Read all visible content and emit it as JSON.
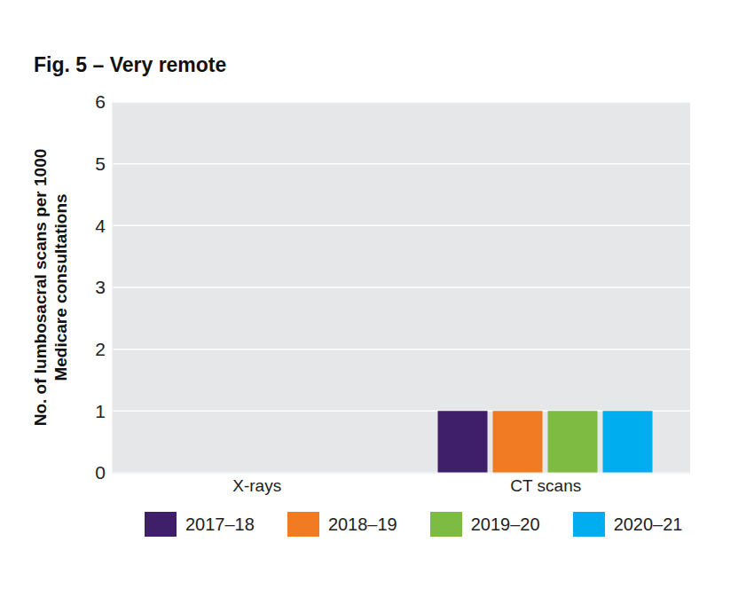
{
  "chart_data": {
    "type": "bar",
    "title": "Fig. 5 – Very remote",
    "ylabel": "No. of lumbosacral scans per 1000 Medicare consultations",
    "categories": [
      "X-rays",
      "CT scans"
    ],
    "series": [
      {
        "name": "2017–18",
        "color": "#3f1f69",
        "values": [
          0,
          1
        ]
      },
      {
        "name": "2018–19",
        "color": "#f07b22",
        "values": [
          0,
          1
        ]
      },
      {
        "name": "2019–20",
        "color": "#7dbb42",
        "values": [
          0,
          1
        ]
      },
      {
        "name": "2020–21",
        "color": "#00aeef",
        "values": [
          0,
          1
        ]
      }
    ],
    "ylim": [
      0,
      6
    ],
    "yticks": [
      0,
      1,
      2,
      3,
      4,
      5,
      6
    ],
    "grid": true,
    "legend": "bottom"
  }
}
